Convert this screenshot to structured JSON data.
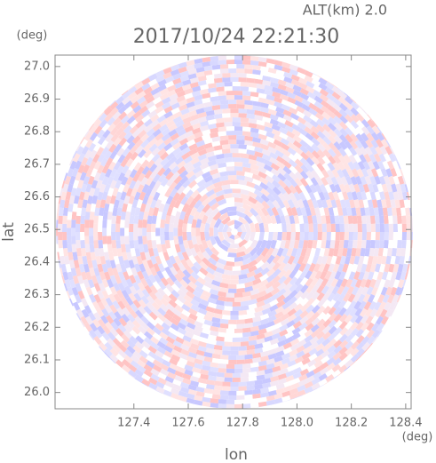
{
  "header": {
    "altitude": "ALT(km) 2.0",
    "timestamp": "2017/10/24 22:21:30"
  },
  "chart_data": {
    "type": "radar-image",
    "x_label": "lon",
    "y_label": "lat",
    "x_unit": "(deg)",
    "y_unit": "(deg)",
    "xlim": [
      127.11,
      128.42
    ],
    "ylim": [
      25.95,
      27.035
    ],
    "xticks": [
      127.4,
      127.6,
      127.8,
      {
        "value": 128.0,
        "label": "128.0"
      },
      128.2,
      128.4
    ],
    "yticks": [
      {
        "value": 26.0,
        "label": "26.0"
      },
      26.1,
      26.2,
      26.3,
      26.4,
      26.5,
      26.6,
      26.7,
      26.8,
      26.9,
      {
        "value": 27.0,
        "label": "27.0"
      }
    ]
  }
}
